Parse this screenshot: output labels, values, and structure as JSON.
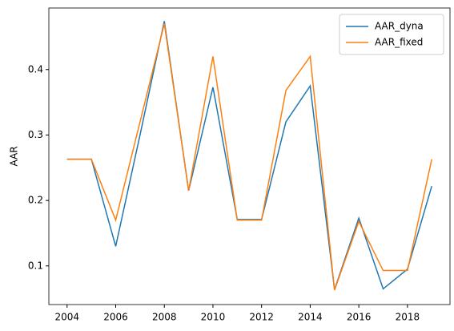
{
  "chart_data": {
    "type": "line",
    "y_label": "AAR",
    "x": [
      2004,
      2005,
      2006,
      2007,
      2008,
      2009,
      2010,
      2011,
      2012,
      2013,
      2014,
      2015,
      2016,
      2017,
      2018,
      2019
    ],
    "series": [
      {
        "name": "AAR_dyna",
        "color": "#1f77b4",
        "values": [
          0.263,
          0.263,
          0.13,
          0.3,
          0.474,
          0.215,
          0.373,
          0.171,
          0.171,
          0.32,
          0.375,
          0.064,
          0.173,
          0.065,
          0.095,
          0.222
        ]
      },
      {
        "name": "AAR_fixed",
        "color": "#ff7f0e",
        "values": [
          0.263,
          0.263,
          0.17,
          0.32,
          0.47,
          0.215,
          0.42,
          0.17,
          0.17,
          0.368,
          0.42,
          0.063,
          0.168,
          0.093,
          0.093,
          0.263
        ]
      }
    ],
    "xlim": [
      2003.25,
      2019.75
    ],
    "xticks": [
      2004,
      2006,
      2008,
      2010,
      2012,
      2014,
      2016,
      2018
    ],
    "ylim": [
      0.041,
      0.494
    ],
    "yticks": [
      0.1,
      0.2,
      0.3,
      0.4
    ],
    "legend": "upper right"
  }
}
